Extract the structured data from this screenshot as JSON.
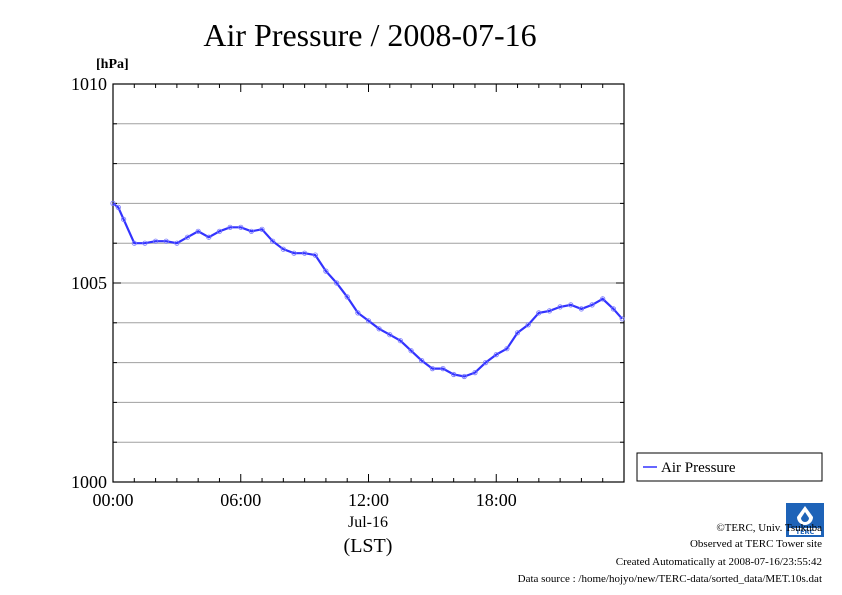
{
  "chart_data": {
    "type": "line",
    "title": "Air Pressure / 2008-07-16",
    "ylabel": "[hPa]",
    "xlabel": "(LST)",
    "x_date_label": "Jul-16",
    "ylim": [
      1000,
      1010
    ],
    "yticks": [
      "1000",
      "1005",
      "1010"
    ],
    "xticks": [
      "00:00",
      "06:00",
      "12:00",
      "18:00"
    ],
    "grid": true,
    "legend_position": "right",
    "series": [
      {
        "name": "Air Pressure",
        "color": "#3333ff",
        "x": [
          "00:00",
          "00:15",
          "00:30",
          "01:00",
          "01:30",
          "02:00",
          "02:30",
          "03:00",
          "03:30",
          "04:00",
          "04:30",
          "05:00",
          "05:30",
          "06:00",
          "06:30",
          "07:00",
          "07:30",
          "08:00",
          "08:30",
          "09:00",
          "09:30",
          "10:00",
          "10:30",
          "11:00",
          "11:30",
          "12:00",
          "12:30",
          "13:00",
          "13:30",
          "14:00",
          "14:30",
          "15:00",
          "15:30",
          "16:00",
          "16:30",
          "17:00",
          "17:30",
          "18:00",
          "18:30",
          "19:00",
          "19:30",
          "20:00",
          "20:30",
          "21:00",
          "21:30",
          "22:00",
          "22:30",
          "23:00",
          "23:30",
          "23:55"
        ],
        "values": [
          1007.0,
          1006.9,
          1006.6,
          1006.0,
          1006.0,
          1006.05,
          1006.05,
          1006.0,
          1006.15,
          1006.3,
          1006.15,
          1006.3,
          1006.4,
          1006.4,
          1006.3,
          1006.35,
          1006.05,
          1005.85,
          1005.75,
          1005.75,
          1005.7,
          1005.3,
          1005.0,
          1004.65,
          1004.25,
          1004.05,
          1003.85,
          1003.7,
          1003.55,
          1003.3,
          1003.05,
          1002.85,
          1002.85,
          1002.7,
          1002.65,
          1002.75,
          1003.0,
          1003.2,
          1003.35,
          1003.75,
          1003.95,
          1004.25,
          1004.3,
          1004.4,
          1004.45,
          1004.35,
          1004.45,
          1004.6,
          1004.35,
          1004.1
        ]
      }
    ]
  },
  "legend": {
    "label": "Air Pressure"
  },
  "footer": {
    "copyright": "©TERC, Univ. Tsukuba",
    "site": "Observed at TERC Tower site",
    "created": "Created Automatically at 2008-07-16/23:55:42",
    "source": "Data source : /home/hojyo/new/TERC-data/sorted_data/MET.10s.dat"
  },
  "logo": {
    "text": "TERC",
    "color": "#1565c0"
  }
}
